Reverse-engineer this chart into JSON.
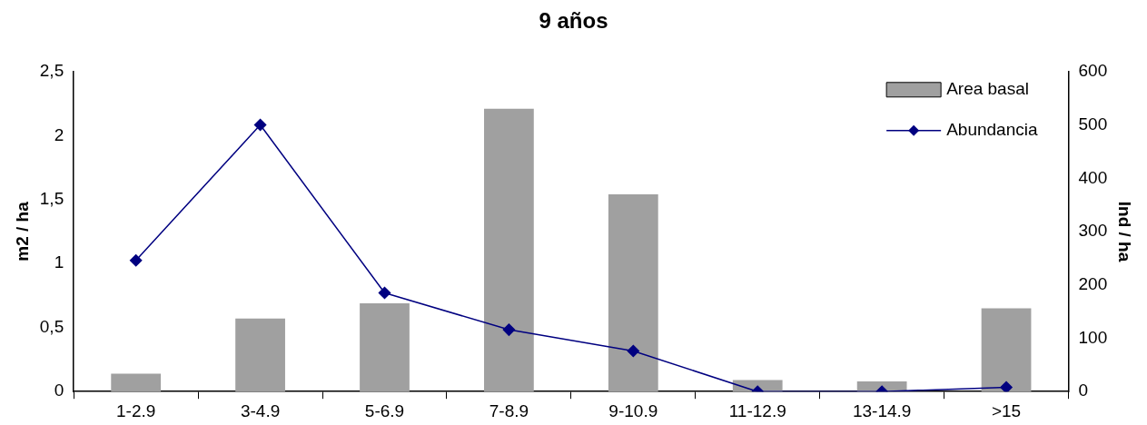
{
  "chart_data": {
    "type": "bar",
    "title": "9 años",
    "ylabel": "m2 / ha",
    "y2label": "Ind / ha",
    "categories": [
      "1-2.9",
      "3-4.9",
      "5-6.9",
      "7-8.9",
      "9-10.9",
      "11-12.9",
      "13-14.9",
      ">15"
    ],
    "series": [
      {
        "name": "Area basal",
        "color": "#a0a0a0",
        "values": [
          0.14,
          0.57,
          0.69,
          2.21,
          1.54,
          0.09,
          0.08,
          0.65
        ]
      },
      {
        "name": "Abundancia",
        "type": "line",
        "axis": "y2",
        "color": "#000080",
        "values": [
          246,
          500,
          185,
          116,
          76,
          0,
          0,
          8
        ]
      }
    ],
    "ylim": [
      0,
      2.5
    ],
    "yticks": [
      0,
      {
        "value": 0.5,
        "label": "0,5"
      },
      1,
      {
        "value": 1.5,
        "label": "1,5"
      },
      2,
      {
        "value": 2.5,
        "label": "2,5"
      }
    ],
    "y2lim": [
      0,
      600
    ],
    "y2ticks": [
      0,
      100,
      200,
      300,
      400,
      500,
      600
    ],
    "legend": "top right",
    "grid": false,
    "marker": "diamond",
    "line_style": "solid"
  }
}
